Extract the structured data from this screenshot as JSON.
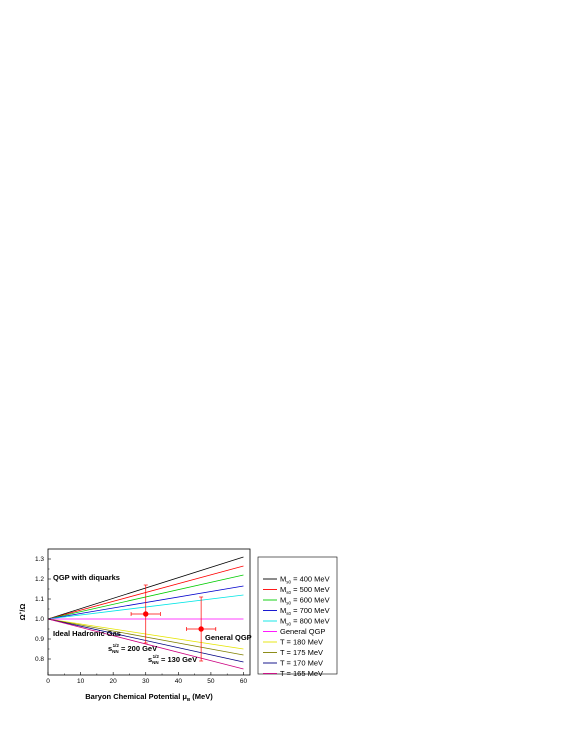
{
  "chart_data": {
    "type": "line",
    "xlabel": "Baryon Chemical Potential μ",
    "xlabel_sub": "B",
    "xlabel_unit": " (MeV)",
    "ylabel": "Ω",
    "ylabel_sup": "+",
    "ylabel_rest": "/Ω",
    "xlim": [
      0,
      62
    ],
    "ylim": [
      0.72,
      1.35
    ],
    "x_ticks": [
      0,
      10,
      20,
      30,
      40,
      50,
      60
    ],
    "y_ticks": [
      0.8,
      0.9,
      1.0,
      1.1,
      1.2,
      1.3
    ],
    "x_tick_labels": [
      "0",
      "10",
      "20",
      "30",
      "40",
      "50",
      "60"
    ],
    "y_tick_labels": [
      "0.8",
      "0.9",
      "1.0",
      "1.1",
      "1.2",
      "1.3"
    ],
    "grid": false,
    "legend_position": "right-outside",
    "series": [
      {
        "name": "M",
        "name_sub": "s0",
        "name_rest": " = 400 MeV",
        "color": "#000000",
        "x": [
          0,
          60
        ],
        "y": [
          1.0,
          1.31
        ]
      },
      {
        "name": "M",
        "name_sub": "s0",
        "name_rest": " = 500 MeV",
        "color": "#ff0000",
        "x": [
          0,
          60
        ],
        "y": [
          1.0,
          1.265
        ]
      },
      {
        "name": "M",
        "name_sub": "s0",
        "name_rest": " = 600 MeV",
        "color": "#00cc00",
        "x": [
          0,
          60
        ],
        "y": [
          1.0,
          1.22
        ]
      },
      {
        "name": "M",
        "name_sub": "s0",
        "name_rest": " = 700 MeV",
        "color": "#0000cc",
        "x": [
          0,
          60
        ],
        "y": [
          1.0,
          1.165
        ]
      },
      {
        "name": "M",
        "name_sub": "s0",
        "name_rest": " = 800 MeV",
        "color": "#00e5e5",
        "x": [
          0,
          60
        ],
        "y": [
          1.0,
          1.12
        ]
      },
      {
        "name": "General QGP",
        "name_sub": "",
        "name_rest": "",
        "color": "#ff00ff",
        "x": [
          0,
          60
        ],
        "y": [
          1.0,
          1.0
        ]
      },
      {
        "name": "T = 180 MeV",
        "name_sub": "",
        "name_rest": "",
        "color": "#e5e500",
        "x": [
          0,
          60
        ],
        "y": [
          1.0,
          0.85
        ]
      },
      {
        "name": "T = 175 MeV",
        "name_sub": "",
        "name_rest": "",
        "color": "#808000",
        "x": [
          0,
          60
        ],
        "y": [
          1.0,
          0.82
        ]
      },
      {
        "name": "T = 170 MeV",
        "name_sub": "",
        "name_rest": "",
        "color": "#000080",
        "x": [
          0,
          60
        ],
        "y": [
          1.0,
          0.785
        ]
      },
      {
        "name": "T = 165 MeV",
        "name_sub": "",
        "name_rest": "",
        "color": "#cc0080",
        "x": [
          0,
          60
        ],
        "y": [
          1.0,
          0.75
        ]
      }
    ],
    "data_points": [
      {
        "x": 30,
        "y": 1.025,
        "xerr": 4.5,
        "yerr": 0.145,
        "color": "#ff0000"
      },
      {
        "x": 47,
        "y": 0.95,
        "xerr": 4.5,
        "yerr": 0.16,
        "color": "#ff0000"
      }
    ],
    "annotations": {
      "qgp_diquarks": "QGP with diquarks",
      "general_qgp": "General QGP",
      "ideal_gas": "Ideal Hadronic Gas",
      "s200_main": "s",
      "s200_sub": "NN",
      "s200_sup": "1/2",
      "s200_rest": " = 200 GeV",
      "s130_main": "s",
      "s130_sub": "NN",
      "s130_sup": "1/2",
      "s130_rest": " = 130 GeV"
    }
  }
}
